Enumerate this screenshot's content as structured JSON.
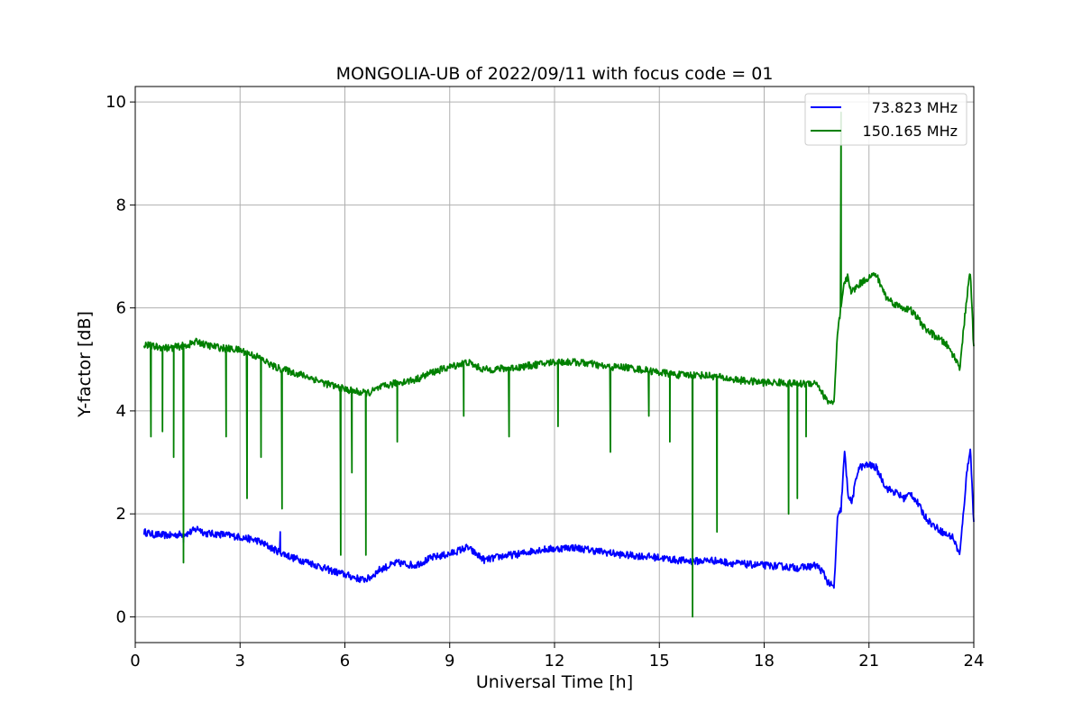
{
  "chart_data": {
    "type": "line",
    "title": "MONGOLIA-UB of 2022/09/11 with focus code = 01",
    "xlabel": "Universal Time [h]",
    "ylabel": "Y-factor [dB]",
    "xlim": [
      0,
      24
    ],
    "ylim": [
      -0.5,
      10.3
    ],
    "xticks": [
      0,
      3,
      6,
      9,
      12,
      15,
      18,
      21,
      24
    ],
    "yticks": [
      0,
      2,
      4,
      6,
      8,
      10
    ],
    "grid": true,
    "legend_position": "top-right",
    "series": [
      {
        "name": "73.823 MHz",
        "color": "#0000ff",
        "x": [
          0.25,
          0.5,
          1.0,
          1.5,
          1.8,
          2.0,
          2.5,
          3.0,
          3.5,
          4.0,
          4.5,
          5.0,
          5.5,
          6.0,
          6.5,
          6.7,
          7.0,
          7.5,
          8.0,
          8.5,
          9.0,
          9.5,
          9.8,
          10.0,
          10.5,
          11.0,
          11.5,
          12.0,
          12.5,
          13.0,
          13.5,
          14.0,
          14.5,
          15.0,
          15.5,
          16.0,
          16.5,
          17.0,
          17.5,
          18.0,
          18.5,
          19.0,
          19.5,
          19.7,
          19.8,
          20.0,
          20.1,
          20.2,
          20.3,
          20.4,
          20.5,
          20.7,
          21.0,
          21.2,
          21.5,
          21.8,
          22.0,
          22.2,
          22.4,
          22.6,
          22.8,
          23.0,
          23.2,
          23.4,
          23.6,
          23.8,
          23.9,
          24.0
        ],
        "y": [
          1.65,
          1.6,
          1.58,
          1.62,
          1.72,
          1.62,
          1.6,
          1.55,
          1.48,
          1.3,
          1.15,
          1.05,
          0.92,
          0.82,
          0.72,
          0.75,
          0.92,
          1.05,
          1.0,
          1.15,
          1.22,
          1.35,
          1.2,
          1.1,
          1.18,
          1.22,
          1.3,
          1.32,
          1.35,
          1.3,
          1.25,
          1.2,
          1.18,
          1.15,
          1.1,
          1.08,
          1.1,
          1.05,
          1.02,
          1.0,
          0.98,
          0.95,
          1.0,
          0.85,
          0.7,
          0.55,
          1.9,
          2.1,
          3.2,
          2.4,
          2.2,
          2.9,
          2.95,
          2.9,
          2.5,
          2.4,
          2.3,
          2.4,
          2.2,
          1.95,
          1.8,
          1.7,
          1.6,
          1.55,
          1.2,
          2.8,
          3.3,
          1.8
        ]
      },
      {
        "name": "150.165 MHz",
        "color": "#008000",
        "x": [
          0.25,
          0.5,
          1.0,
          1.5,
          1.8,
          2.0,
          2.5,
          3.0,
          3.5,
          4.0,
          4.5,
          5.0,
          5.5,
          6.0,
          6.5,
          6.7,
          7.0,
          7.5,
          8.0,
          8.5,
          9.0,
          9.5,
          9.8,
          10.0,
          10.5,
          11.0,
          11.5,
          12.0,
          12.5,
          13.0,
          13.5,
          14.0,
          14.5,
          15.0,
          15.5,
          16.0,
          16.5,
          17.0,
          17.5,
          18.0,
          18.5,
          19.0,
          19.5,
          19.7,
          19.8,
          20.0,
          20.1,
          20.2,
          20.3,
          20.4,
          20.5,
          20.7,
          21.0,
          21.2,
          21.5,
          21.8,
          22.0,
          22.2,
          22.4,
          22.6,
          22.8,
          23.0,
          23.2,
          23.4,
          23.6,
          23.8,
          23.9,
          24.0
        ],
        "y": [
          5.3,
          5.25,
          5.22,
          5.28,
          5.35,
          5.28,
          5.22,
          5.18,
          5.05,
          4.85,
          4.75,
          4.65,
          4.52,
          4.42,
          4.35,
          4.35,
          4.45,
          4.55,
          4.6,
          4.75,
          4.85,
          4.95,
          4.85,
          4.8,
          4.82,
          4.85,
          4.9,
          4.95,
          4.95,
          4.92,
          4.85,
          4.85,
          4.8,
          4.75,
          4.7,
          4.7,
          4.68,
          4.62,
          4.58,
          4.55,
          4.55,
          4.52,
          4.55,
          4.3,
          4.2,
          4.15,
          5.5,
          6.0,
          6.5,
          6.6,
          6.3,
          6.45,
          6.6,
          6.65,
          6.2,
          6.05,
          6.0,
          5.95,
          5.8,
          5.6,
          5.5,
          5.4,
          5.3,
          5.1,
          4.85,
          6.2,
          6.7,
          5.2
        ]
      }
    ],
    "spikes": [
      {
        "series": 1,
        "x": 0.45,
        "y": 3.5
      },
      {
        "series": 1,
        "x": 0.78,
        "y": 3.6
      },
      {
        "series": 1,
        "x": 1.1,
        "y": 3.1
      },
      {
        "series": 1,
        "x": 1.38,
        "y": 1.05
      },
      {
        "series": 1,
        "x": 2.6,
        "y": 3.5
      },
      {
        "series": 1,
        "x": 3.2,
        "y": 2.3
      },
      {
        "series": 1,
        "x": 3.6,
        "y": 3.1
      },
      {
        "series": 1,
        "x": 4.2,
        "y": 2.1
      },
      {
        "series": 1,
        "x": 5.88,
        "y": 1.2
      },
      {
        "series": 1,
        "x": 6.2,
        "y": 2.8
      },
      {
        "series": 1,
        "x": 6.6,
        "y": 1.2
      },
      {
        "series": 1,
        "x": 7.5,
        "y": 3.4
      },
      {
        "series": 1,
        "x": 9.4,
        "y": 3.9
      },
      {
        "series": 1,
        "x": 10.7,
        "y": 3.5
      },
      {
        "series": 1,
        "x": 12.1,
        "y": 3.7
      },
      {
        "series": 1,
        "x": 13.6,
        "y": 3.2
      },
      {
        "series": 1,
        "x": 14.7,
        "y": 3.9
      },
      {
        "series": 1,
        "x": 15.3,
        "y": 3.4
      },
      {
        "series": 1,
        "x": 15.95,
        "y": 0.0
      },
      {
        "series": 1,
        "x": 16.65,
        "y": 1.65
      },
      {
        "series": 1,
        "x": 18.7,
        "y": 2.0
      },
      {
        "series": 1,
        "x": 18.95,
        "y": 2.3
      },
      {
        "series": 1,
        "x": 19.2,
        "y": 3.5
      },
      {
        "series": 1,
        "x": 20.2,
        "y": 9.8
      },
      {
        "series": 0,
        "x": 4.15,
        "y": 1.65
      },
      {
        "series": 0,
        "x": 1.38,
        "y": 1.45
      }
    ]
  }
}
